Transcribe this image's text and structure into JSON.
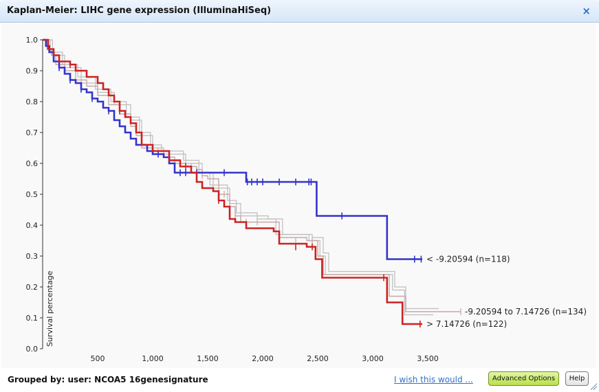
{
  "window": {
    "title": "Kaplan-Meier: LIHC gene expression (IlluminaHiSeq)",
    "close_label": "×"
  },
  "footer": {
    "grouped_by": "Grouped by: user: NCOA5 16genesignature",
    "wish_link": "I wish this would ...",
    "advanced_options": "Advanced Options",
    "help": "Help"
  },
  "chart_data": {
    "type": "line",
    "step": true,
    "title": "",
    "xlabel": "",
    "ylabel": "Survival percentage",
    "xlim": [
      0,
      4000
    ],
    "ylim": [
      0,
      1
    ],
    "x_ticks": [
      "500",
      "1,000",
      "1,500",
      "2,000",
      "2,500",
      "3,000",
      "3,500"
    ],
    "y_ticks": [
      "0.0",
      "0.1",
      "0.2",
      "0.3",
      "0.4",
      "0.5",
      "0.6",
      "0.7",
      "0.8",
      "0.9",
      "1.0"
    ],
    "grid": false,
    "colors": {
      "low": "#3333cc",
      "high": "#cc2222",
      "mid": "#c7a8a8"
    },
    "series": [
      {
        "name": "< -9.20594 (n=118)",
        "color": "#3333cc",
        "points": [
          [
            0,
            1.0
          ],
          [
            30,
            0.98
          ],
          [
            60,
            0.96
          ],
          [
            100,
            0.93
          ],
          [
            150,
            0.91
          ],
          [
            200,
            0.89
          ],
          [
            250,
            0.87
          ],
          [
            300,
            0.86
          ],
          [
            350,
            0.84
          ],
          [
            400,
            0.83
          ],
          [
            450,
            0.81
          ],
          [
            500,
            0.8
          ],
          [
            550,
            0.78
          ],
          [
            600,
            0.77
          ],
          [
            650,
            0.74
          ],
          [
            700,
            0.72
          ],
          [
            750,
            0.7
          ],
          [
            800,
            0.68
          ],
          [
            850,
            0.66
          ],
          [
            900,
            0.66
          ],
          [
            950,
            0.64
          ],
          [
            1000,
            0.63
          ],
          [
            1100,
            0.62
          ],
          [
            1150,
            0.6
          ],
          [
            1200,
            0.57
          ],
          [
            1500,
            0.57
          ],
          [
            1850,
            0.54
          ],
          [
            2460,
            0.54
          ],
          [
            2490,
            0.43
          ],
          [
            3120,
            0.43
          ],
          [
            3130,
            0.29
          ],
          [
            3450,
            0.29
          ]
        ],
        "censors": [
          [
            150,
            0.91
          ],
          [
            250,
            0.87
          ],
          [
            350,
            0.84
          ],
          [
            450,
            0.81
          ],
          [
            600,
            0.77
          ],
          [
            1050,
            0.63
          ],
          [
            1250,
            0.57
          ],
          [
            1300,
            0.57
          ],
          [
            1400,
            0.57
          ],
          [
            1650,
            0.57
          ],
          [
            1860,
            0.54
          ],
          [
            1900,
            0.54
          ],
          [
            1950,
            0.54
          ],
          [
            2000,
            0.54
          ],
          [
            2150,
            0.54
          ],
          [
            2300,
            0.54
          ],
          [
            2420,
            0.54
          ],
          [
            2440,
            0.54
          ],
          [
            2720,
            0.43
          ],
          [
            3380,
            0.29
          ],
          [
            3440,
            0.29
          ]
        ]
      },
      {
        "name": "-9.20594 to 7.14726 (n=134)",
        "color": "#c7a8a8",
        "points": [
          [
            0,
            1.0
          ],
          [
            40,
            0.97
          ],
          [
            80,
            0.95
          ],
          [
            120,
            0.92
          ],
          [
            200,
            0.9
          ],
          [
            300,
            0.87
          ],
          [
            400,
            0.85
          ],
          [
            500,
            0.82
          ],
          [
            600,
            0.79
          ],
          [
            700,
            0.76
          ],
          [
            800,
            0.72
          ],
          [
            850,
            0.69
          ],
          [
            900,
            0.65
          ],
          [
            1000,
            0.64
          ],
          [
            1100,
            0.62
          ],
          [
            1200,
            0.6
          ],
          [
            1300,
            0.59
          ],
          [
            1400,
            0.58
          ],
          [
            1450,
            0.56
          ],
          [
            1500,
            0.55
          ],
          [
            1600,
            0.5
          ],
          [
            1700,
            0.46
          ],
          [
            1750,
            0.43
          ],
          [
            1800,
            0.41
          ],
          [
            2000,
            0.41
          ],
          [
            2150,
            0.36
          ],
          [
            2400,
            0.35
          ],
          [
            2500,
            0.3
          ],
          [
            2550,
            0.24
          ],
          [
            3120,
            0.24
          ],
          [
            3150,
            0.17
          ],
          [
            3300,
            0.12
          ],
          [
            3800,
            0.12
          ]
        ],
        "censors": [
          [
            1050,
            0.64
          ],
          [
            1350,
            0.59
          ],
          [
            1450,
            0.56
          ],
          [
            1650,
            0.5
          ],
          [
            1750,
            0.43
          ],
          [
            1850,
            0.41
          ],
          [
            1950,
            0.41
          ],
          [
            2300,
            0.35
          ],
          [
            2450,
            0.35
          ],
          [
            3800,
            0.12
          ]
        ]
      },
      {
        "name": "> 7.14726 (n=122)",
        "color": "#cc2222",
        "points": [
          [
            0,
            1.0
          ],
          [
            50,
            0.97
          ],
          [
            100,
            0.95
          ],
          [
            150,
            0.93
          ],
          [
            250,
            0.92
          ],
          [
            300,
            0.9
          ],
          [
            400,
            0.88
          ],
          [
            500,
            0.86
          ],
          [
            550,
            0.84
          ],
          [
            600,
            0.82
          ],
          [
            650,
            0.8
          ],
          [
            700,
            0.77
          ],
          [
            750,
            0.75
          ],
          [
            800,
            0.73
          ],
          [
            850,
            0.7
          ],
          [
            900,
            0.66
          ],
          [
            1000,
            0.64
          ],
          [
            1150,
            0.61
          ],
          [
            1250,
            0.59
          ],
          [
            1350,
            0.57
          ],
          [
            1400,
            0.54
          ],
          [
            1450,
            0.52
          ],
          [
            1550,
            0.51
          ],
          [
            1600,
            0.48
          ],
          [
            1650,
            0.46
          ],
          [
            1700,
            0.42
          ],
          [
            1750,
            0.41
          ],
          [
            1850,
            0.39
          ],
          [
            2100,
            0.38
          ],
          [
            2150,
            0.34
          ],
          [
            2400,
            0.33
          ],
          [
            2480,
            0.29
          ],
          [
            2540,
            0.23
          ],
          [
            3120,
            0.23
          ],
          [
            3130,
            0.15
          ],
          [
            3260,
            0.15
          ],
          [
            3270,
            0.08
          ],
          [
            3450,
            0.08
          ]
        ],
        "censors": [
          [
            250,
            0.92
          ],
          [
            700,
            0.77
          ],
          [
            1300,
            0.59
          ],
          [
            1600,
            0.48
          ],
          [
            2300,
            0.33
          ],
          [
            2450,
            0.33
          ],
          [
            3100,
            0.23
          ],
          [
            3430,
            0.08
          ]
        ]
      }
    ],
    "ghost_curves": [
      [
        [
          0,
          1.0
        ],
        [
          90,
          0.95
        ],
        [
          200,
          0.91
        ],
        [
          350,
          0.86
        ],
        [
          500,
          0.83
        ],
        [
          650,
          0.79
        ],
        [
          800,
          0.74
        ],
        [
          900,
          0.69
        ],
        [
          1000,
          0.65
        ],
        [
          1100,
          0.63
        ],
        [
          1300,
          0.6
        ],
        [
          1450,
          0.57
        ],
        [
          1550,
          0.52
        ],
        [
          1700,
          0.47
        ],
        [
          1800,
          0.43
        ],
        [
          2050,
          0.42
        ],
        [
          2180,
          0.37
        ],
        [
          2450,
          0.36
        ],
        [
          2550,
          0.31
        ],
        [
          2600,
          0.25
        ],
        [
          3150,
          0.25
        ],
        [
          3200,
          0.2
        ],
        [
          3300,
          0.13
        ],
        [
          3600,
          0.13
        ]
      ],
      [
        [
          0,
          1.0
        ],
        [
          70,
          0.96
        ],
        [
          180,
          0.92
        ],
        [
          320,
          0.88
        ],
        [
          480,
          0.84
        ],
        [
          620,
          0.8
        ],
        [
          760,
          0.75
        ],
        [
          880,
          0.7
        ],
        [
          980,
          0.66
        ],
        [
          1080,
          0.64
        ],
        [
          1280,
          0.61
        ],
        [
          1420,
          0.57
        ],
        [
          1520,
          0.53
        ],
        [
          1680,
          0.48
        ],
        [
          1760,
          0.44
        ],
        [
          1950,
          0.42
        ],
        [
          2120,
          0.37
        ],
        [
          2420,
          0.35
        ],
        [
          2520,
          0.3
        ],
        [
          2570,
          0.24
        ],
        [
          3130,
          0.24
        ],
        [
          3180,
          0.19
        ],
        [
          3290,
          0.11
        ],
        [
          3550,
          0.11
        ]
      ]
    ]
  }
}
